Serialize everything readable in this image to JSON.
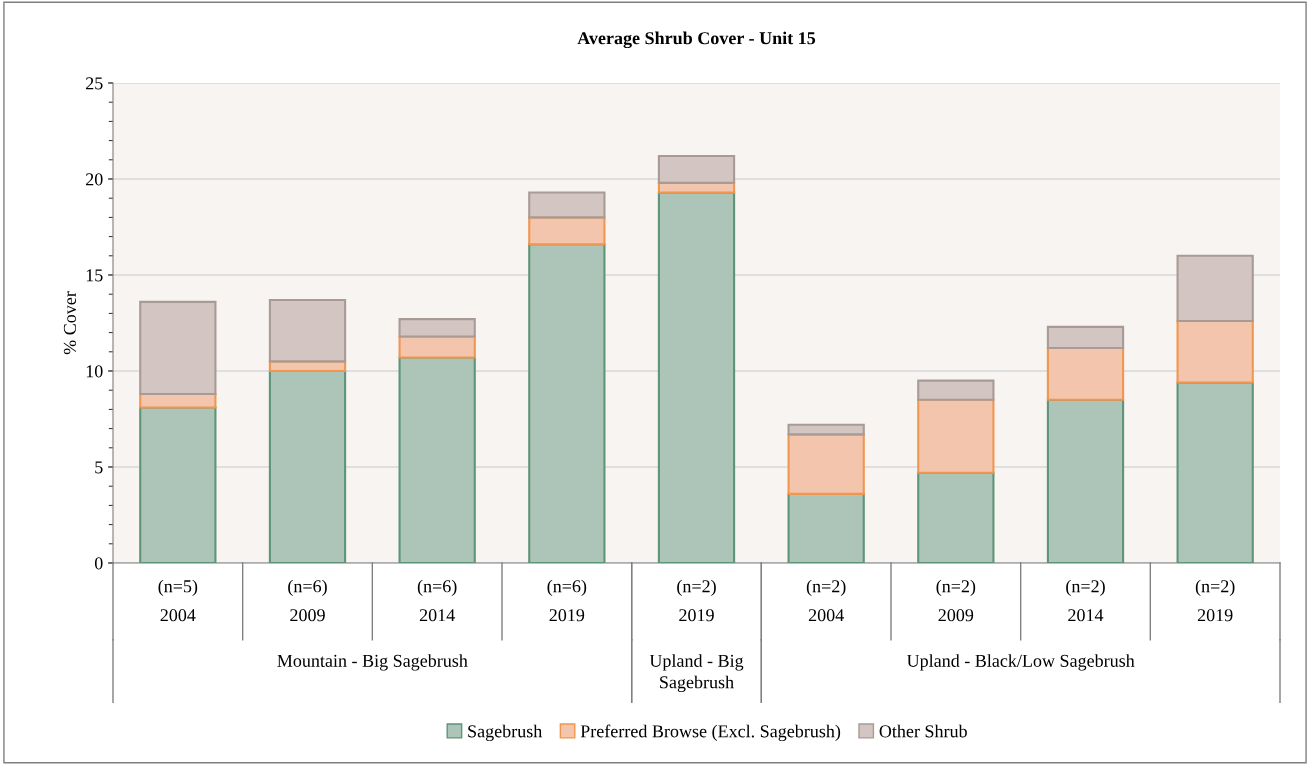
{
  "chart_data": {
    "type": "bar",
    "title": "Average Shrub Cover - Unit 15",
    "ylabel": "% Cover",
    "categories": [
      "(n=5)\n2004",
      "(n=6)\n2009",
      "(n=6)\n2014",
      "(n=6)\n2019",
      "(n=2)\n2019",
      "(n=2)\n2004",
      "(n=2)\n2009",
      "(n=2)\n2014",
      "(n=2)\n2019"
    ],
    "series": [
      {
        "name": "Sagebrush",
        "color": "#adc4b8",
        "values": [
          8.1,
          10.0,
          10.7,
          16.6,
          19.3,
          3.6,
          4.7,
          8.5,
          9.4
        ]
      },
      {
        "name": "Preferred Browse (Excl. Sagebrush)",
        "color": "#f4c5ad",
        "values": [
          0.7,
          0.5,
          1.1,
          1.4,
          0.5,
          3.1,
          3.8,
          2.7,
          3.2
        ]
      },
      {
        "name": "Other Shrub",
        "color": "#d3c6c2",
        "values": [
          4.8,
          3.2,
          0.9,
          1.3,
          1.4,
          0.5,
          1.0,
          1.1,
          3.4
        ]
      }
    ],
    "stacked": true,
    "ylim": [
      0,
      25
    ],
    "yticks": [
      0,
      5,
      10,
      15,
      20,
      25
    ],
    "grid": "y",
    "legend": "bottom",
    "annotations": [
      "Mountain - Big Sagebrush",
      "Upland - Big\nSagebrush",
      "Upland - Black/Low Sagebrush"
    ]
  }
}
